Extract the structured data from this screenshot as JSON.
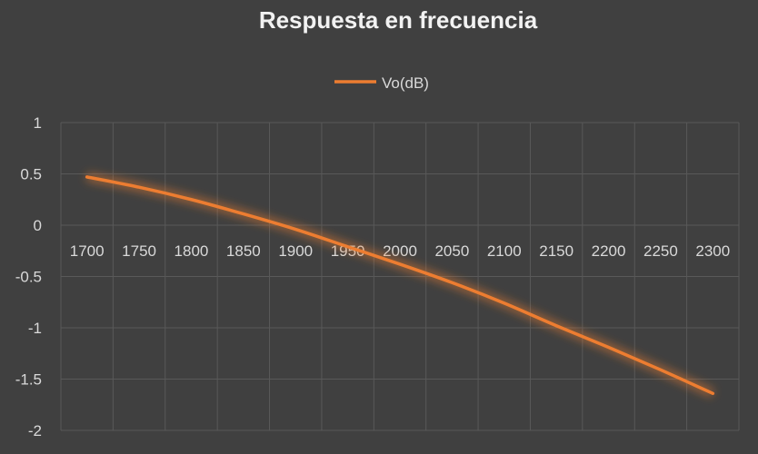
{
  "chart_data": {
    "type": "line",
    "title": "Respuesta en frecuencia",
    "xlabel": "",
    "ylabel": "",
    "categories": [
      "1700",
      "1750",
      "1800",
      "1850",
      "1900",
      "1950",
      "2000",
      "2050",
      "2100",
      "2150",
      "2200",
      "2250",
      "2300"
    ],
    "series": [
      {
        "name": "Vo(dB)",
        "color": "#ED7D31",
        "values": [
          0.47,
          0.37,
          0.25,
          0.11,
          -0.04,
          -0.21,
          -0.38,
          -0.56,
          -0.76,
          -0.98,
          -1.19,
          -1.41,
          -1.64
        ]
      }
    ],
    "ylim": [
      -2,
      1
    ],
    "yticks": [
      "1",
      "0.5",
      "0",
      "-0.5",
      "-1",
      "-1.5",
      "-2"
    ],
    "ytick_values": [
      1,
      0.5,
      0,
      -0.5,
      -1,
      -1.5,
      -2
    ],
    "grid": true,
    "legend_position": "top",
    "background_color": "#404040",
    "grid_color": "#595959",
    "text_color": "#D9D9D9",
    "title_color": "#F2F2F2"
  }
}
